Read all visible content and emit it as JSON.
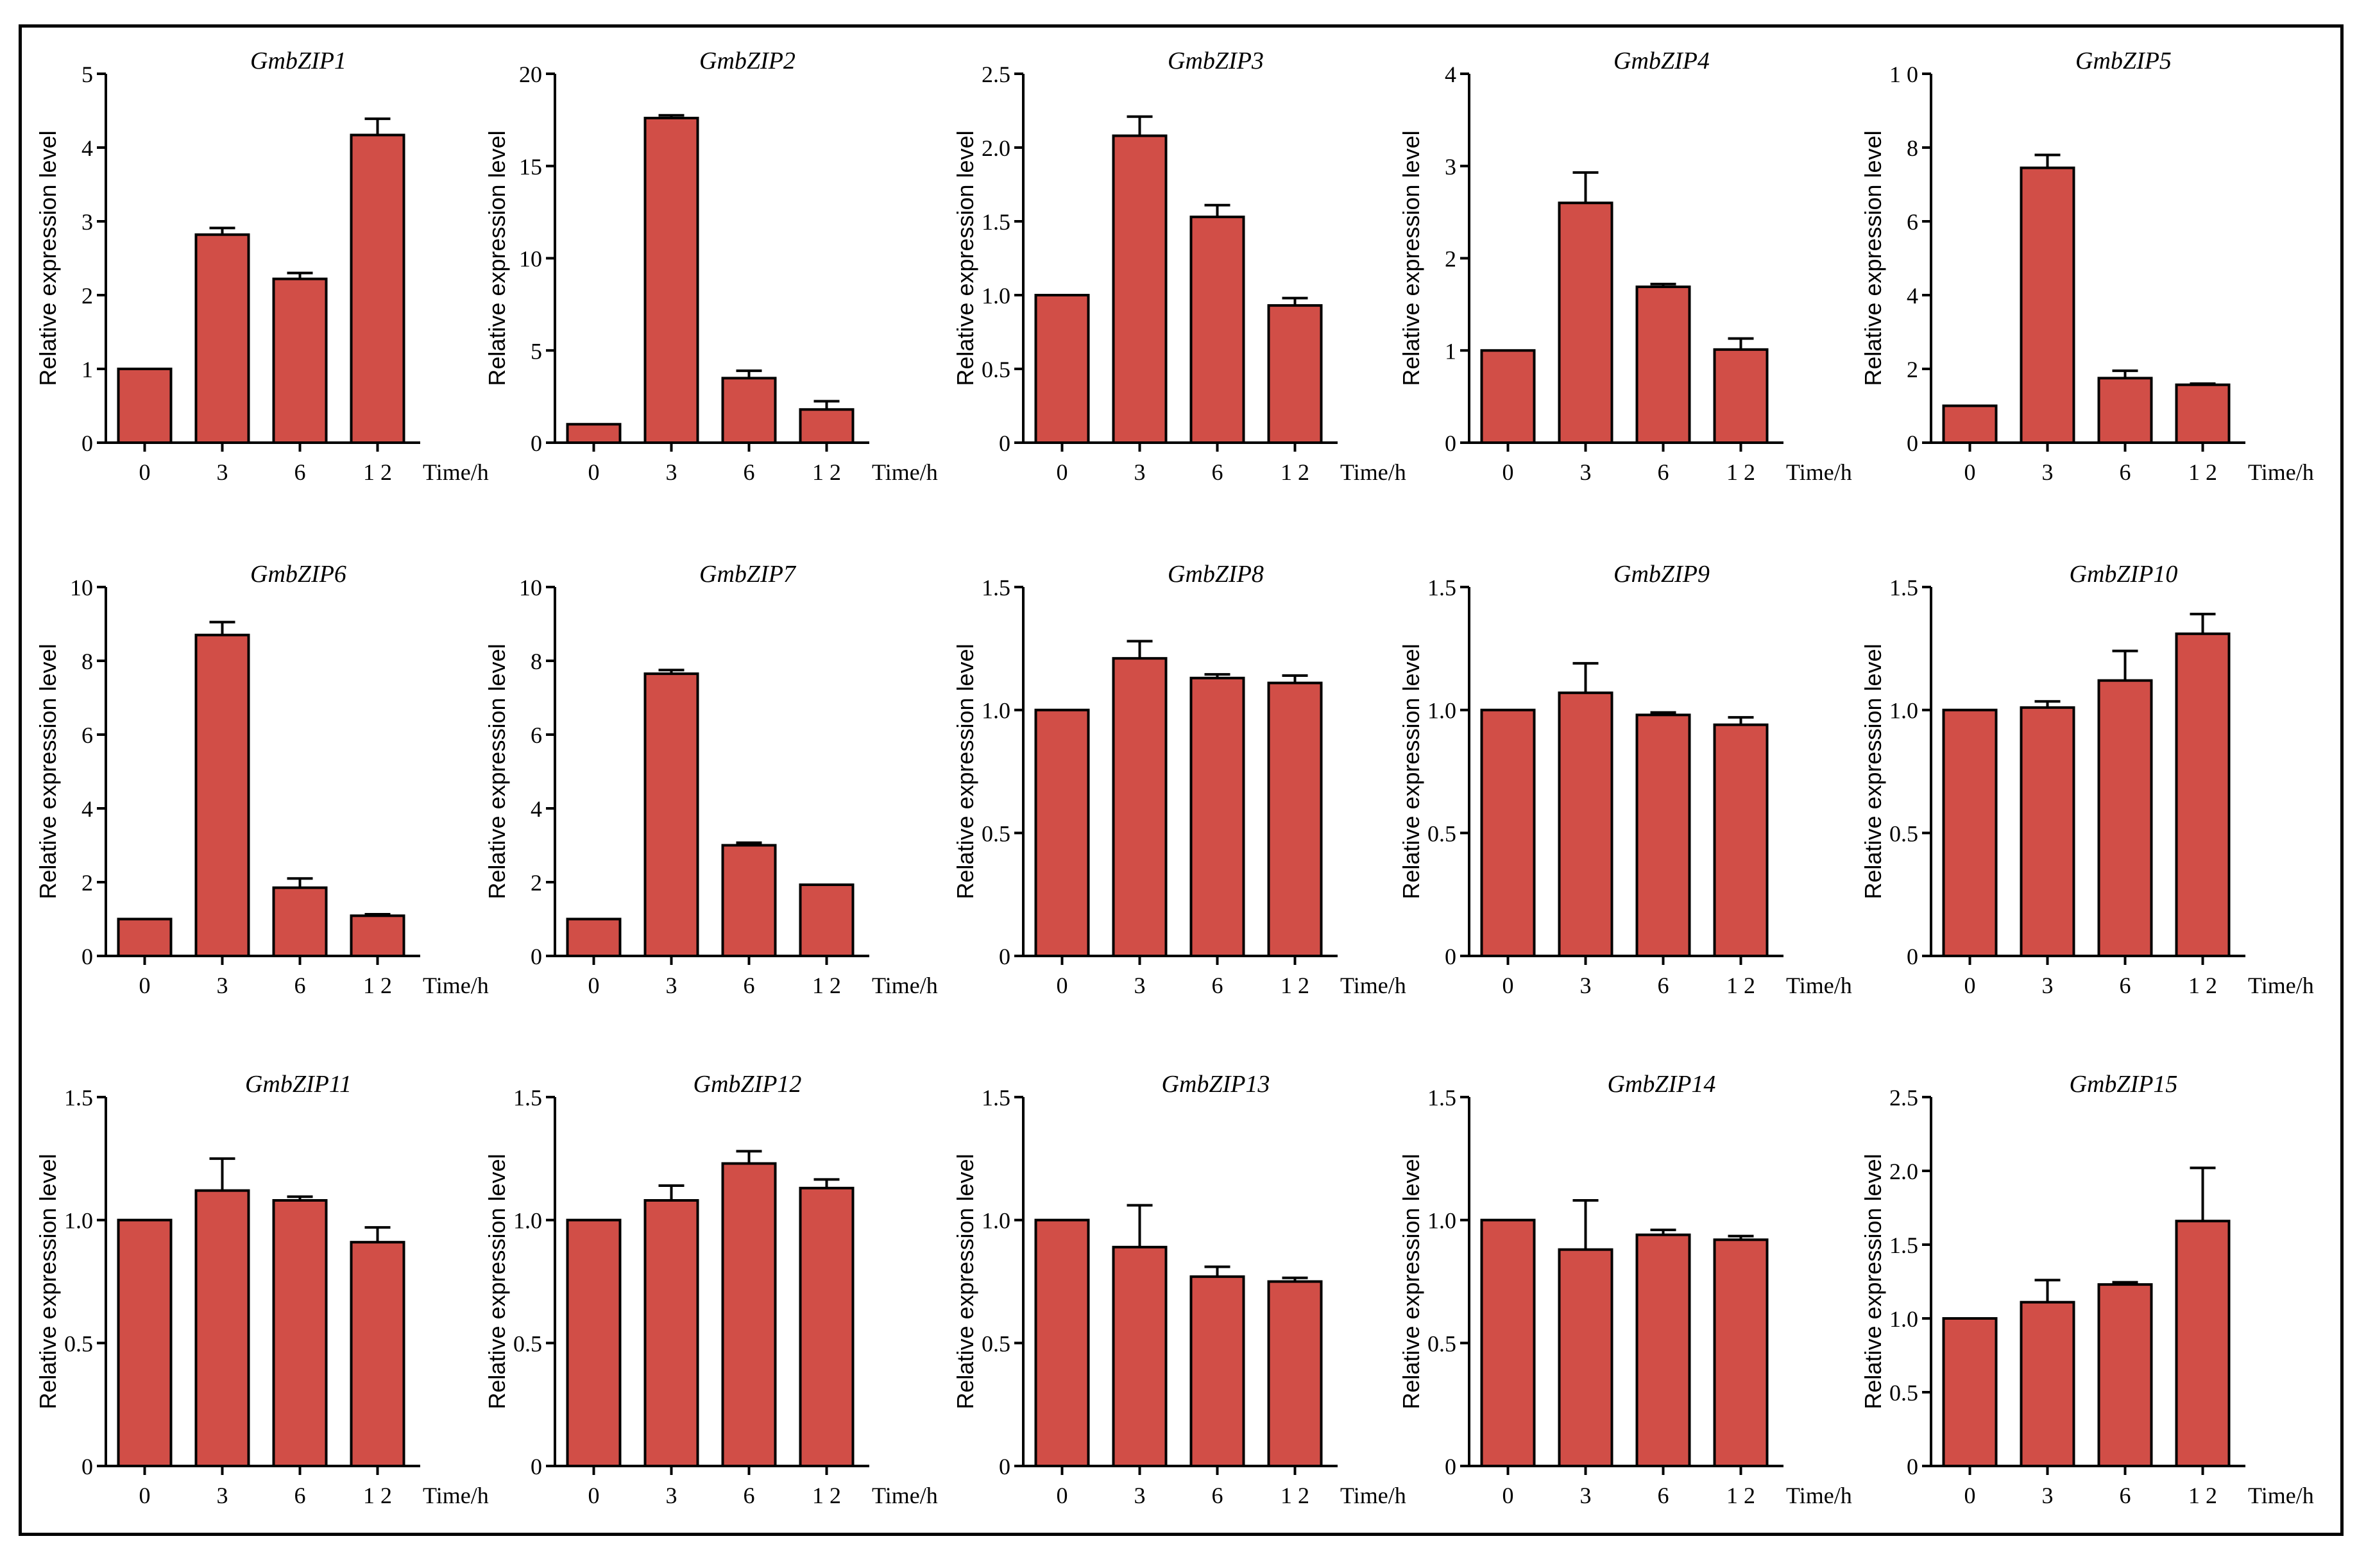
{
  "figure": {
    "bar_color": "#d14e47",
    "bar_outline": "#000000",
    "axis_color": "#000000"
  },
  "chart_data": [
    {
      "type": "bar",
      "title": "GmbZIP1",
      "xlabel": "Time/h",
      "ylabel": "Relative expression level",
      "categories": [
        "0",
        "3",
        "6",
        "1 2"
      ],
      "values": [
        1.0,
        2.82,
        2.22,
        4.17
      ],
      "errors": [
        0,
        0.09,
        0.08,
        0.22
      ],
      "ylim": [
        0,
        5
      ],
      "yticks": [
        "0",
        "1",
        "2",
        "3",
        "4",
        "5"
      ]
    },
    {
      "type": "bar",
      "title": "GmbZIP2",
      "xlabel": "Time/h",
      "ylabel": "Relative expression level",
      "categories": [
        "0",
        "3",
        "6",
        "1 2"
      ],
      "values": [
        1.0,
        17.6,
        3.5,
        1.8
      ],
      "errors": [
        0,
        0.15,
        0.4,
        0.45
      ],
      "ylim": [
        0,
        20
      ],
      "yticks": [
        "0",
        "5",
        "10",
        "15",
        "20"
      ]
    },
    {
      "type": "bar",
      "title": "GmbZIP3",
      "xlabel": "Time/h",
      "ylabel": "Relative expression level",
      "categories": [
        "0",
        "3",
        "6",
        "1 2"
      ],
      "values": [
        1.0,
        2.08,
        1.53,
        0.93
      ],
      "errors": [
        0,
        0.13,
        0.08,
        0.05
      ],
      "ylim": [
        0,
        2.5
      ],
      "yticks": [
        "0",
        "0.5",
        "1.0",
        "1.5",
        "2.0",
        "2.5"
      ]
    },
    {
      "type": "bar",
      "title": "GmbZIP4",
      "xlabel": "Time/h",
      "ylabel": "Relative expression level",
      "categories": [
        "0",
        "3",
        "6",
        "1 2"
      ],
      "values": [
        1.0,
        2.6,
        1.69,
        1.01
      ],
      "errors": [
        0,
        0.33,
        0.03,
        0.12
      ],
      "ylim": [
        0,
        4
      ],
      "yticks": [
        "0",
        "1",
        "2",
        "3",
        "4"
      ]
    },
    {
      "type": "bar",
      "title": "GmbZIP5",
      "xlabel": "Time/h",
      "ylabel": "Relative expression level",
      "categories": [
        "0",
        "3",
        "6",
        "1 2"
      ],
      "values": [
        1.0,
        7.45,
        1.75,
        1.57
      ],
      "errors": [
        0,
        0.35,
        0.2,
        0.03
      ],
      "ylim": [
        0,
        10
      ],
      "yticks": [
        "0",
        "2",
        "4",
        "6",
        "8",
        "1 0"
      ]
    },
    {
      "type": "bar",
      "title": "GmbZIP6",
      "xlabel": "Time/h",
      "ylabel": "Relative expression level",
      "categories": [
        "0",
        "3",
        "6",
        "1 2"
      ],
      "values": [
        1.0,
        8.7,
        1.85,
        1.09
      ],
      "errors": [
        0,
        0.35,
        0.25,
        0.04
      ],
      "ylim": [
        0,
        10
      ],
      "yticks": [
        "0",
        "2",
        "4",
        "6",
        "8",
        "10"
      ]
    },
    {
      "type": "bar",
      "title": "GmbZIP7",
      "xlabel": "Time/h",
      "ylabel": "Relative expression level",
      "categories": [
        "0",
        "3",
        "6",
        "1 2"
      ],
      "values": [
        1.0,
        7.65,
        3.0,
        1.93
      ],
      "errors": [
        0,
        0.1,
        0.07,
        0
      ],
      "ylim": [
        0,
        10
      ],
      "yticks": [
        "0",
        "2",
        "4",
        "6",
        "8",
        "10"
      ]
    },
    {
      "type": "bar",
      "title": "GmbZIP8",
      "xlabel": "Time/h",
      "ylabel": "Relative expression level",
      "categories": [
        "0",
        "3",
        "6",
        "1 2"
      ],
      "values": [
        1.0,
        1.21,
        1.13,
        1.11
      ],
      "errors": [
        0,
        0.07,
        0.015,
        0.03
      ],
      "ylim": [
        0,
        1.5
      ],
      "yticks": [
        "0",
        "0.5",
        "1.0",
        "1.5"
      ]
    },
    {
      "type": "bar",
      "title": "GmbZIP9",
      "xlabel": "Time/h",
      "ylabel": "Relative expression level",
      "categories": [
        "0",
        "3",
        "6",
        "1 2"
      ],
      "values": [
        1.0,
        1.07,
        0.98,
        0.94
      ],
      "errors": [
        0,
        0.12,
        0.01,
        0.03
      ],
      "ylim": [
        0,
        1.5
      ],
      "yticks": [
        "0",
        "0.5",
        "1.0",
        "1.5"
      ]
    },
    {
      "type": "bar",
      "title": "GmbZIP10",
      "xlabel": "Time/h",
      "ylabel": "Relative expression level",
      "categories": [
        "0",
        "3",
        "6",
        "1 2"
      ],
      "values": [
        1.0,
        1.01,
        1.12,
        1.31
      ],
      "errors": [
        0,
        0.025,
        0.12,
        0.08
      ],
      "ylim": [
        0,
        1.5
      ],
      "yticks": [
        "0",
        "0.5",
        "1.0",
        "1.5"
      ]
    },
    {
      "type": "bar",
      "title": "GmbZIP11",
      "xlabel": "Time/h",
      "ylabel": "Relative expression level",
      "categories": [
        "0",
        "3",
        "6",
        "1 2"
      ],
      "values": [
        1.0,
        1.12,
        1.08,
        0.91
      ],
      "errors": [
        0,
        0.13,
        0.015,
        0.06
      ],
      "ylim": [
        0,
        1.5
      ],
      "yticks": [
        "0",
        "0.5",
        "1.0",
        "1.5"
      ]
    },
    {
      "type": "bar",
      "title": "GmbZIP12",
      "xlabel": "Time/h",
      "ylabel": "Relative expression level",
      "categories": [
        "0",
        "3",
        "6",
        "1 2"
      ],
      "values": [
        1.0,
        1.08,
        1.23,
        1.13
      ],
      "errors": [
        0,
        0.06,
        0.05,
        0.035
      ],
      "ylim": [
        0,
        1.5
      ],
      "yticks": [
        "0",
        "0.5",
        "1.0",
        "1.5"
      ]
    },
    {
      "type": "bar",
      "title": "GmbZIP13",
      "xlabel": "Time/h",
      "ylabel": "Relative expression level",
      "categories": [
        "0",
        "3",
        "6",
        "1 2"
      ],
      "values": [
        1.0,
        0.89,
        0.77,
        0.75
      ],
      "errors": [
        0,
        0.17,
        0.04,
        0.015
      ],
      "ylim": [
        0,
        1.5
      ],
      "yticks": [
        "0",
        "0.5",
        "1.0",
        "1.5"
      ]
    },
    {
      "type": "bar",
      "title": "GmbZIP14",
      "xlabel": "Time/h",
      "ylabel": "Relative expression level",
      "categories": [
        "0",
        "3",
        "6",
        "1 2"
      ],
      "values": [
        1.0,
        0.88,
        0.94,
        0.92
      ],
      "errors": [
        0,
        0.2,
        0.02,
        0.015
      ],
      "ylim": [
        0,
        1.5
      ],
      "yticks": [
        "0",
        "0.5",
        "1.0",
        "1.5"
      ]
    },
    {
      "type": "bar",
      "title": "GmbZIP15",
      "xlabel": "Time/h",
      "ylabel": "Relative expression level",
      "categories": [
        "0",
        "3",
        "6",
        "1 2"
      ],
      "values": [
        1.0,
        1.11,
        1.23,
        1.66
      ],
      "errors": [
        0,
        0.15,
        0.015,
        0.36
      ],
      "ylim": [
        0,
        2.5
      ],
      "yticks": [
        "0",
        "0.5",
        "1.0",
        "1.5",
        "2.0",
        "2.5"
      ]
    }
  ]
}
